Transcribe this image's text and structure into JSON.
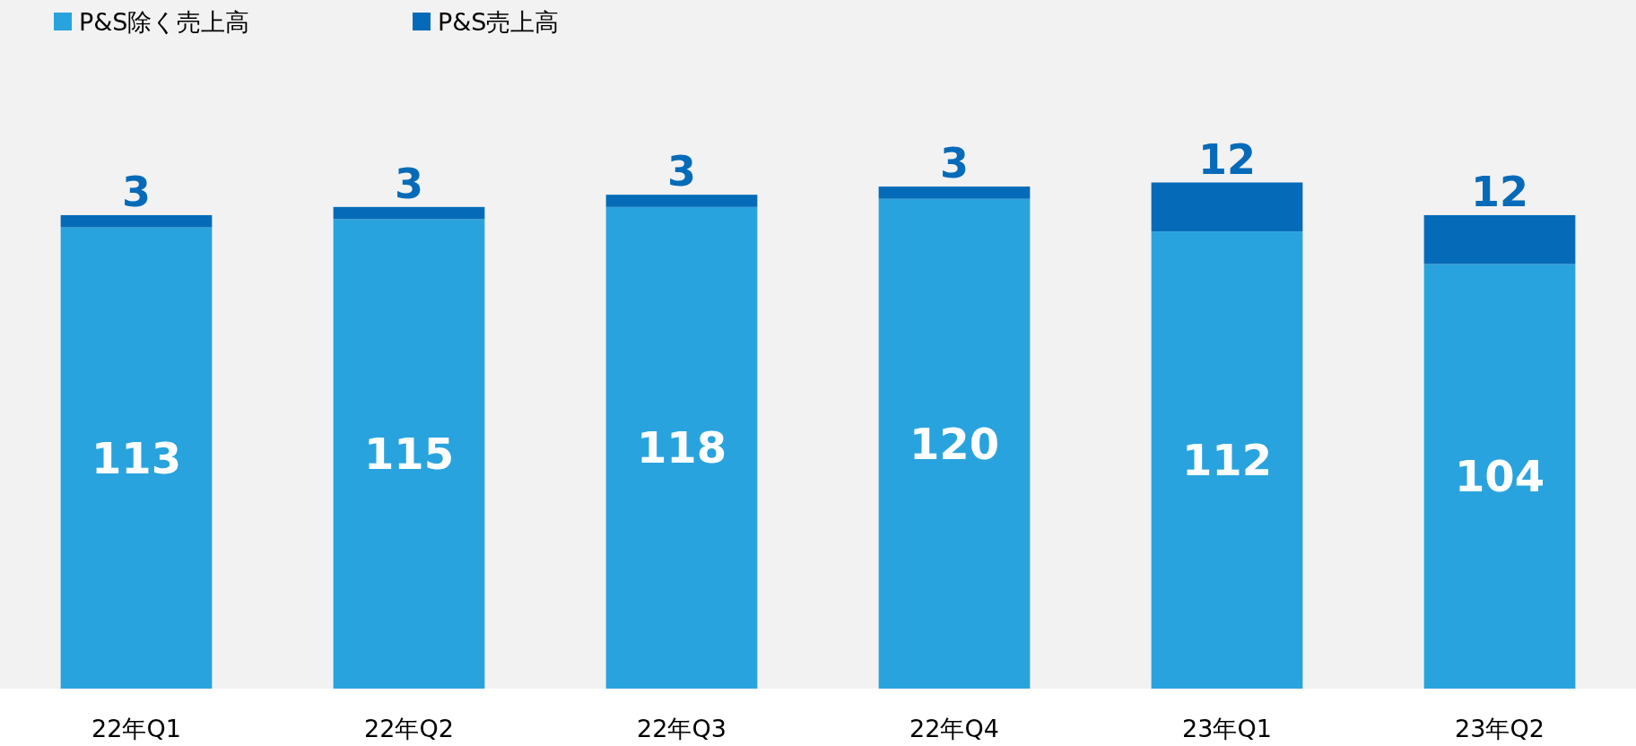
{
  "chart_data": {
    "type": "bar",
    "stacked": true,
    "categories": [
      "22年Q1",
      "22年Q2",
      "22年Q3",
      "22年Q4",
      "23年Q1",
      "23年Q2"
    ],
    "series": [
      {
        "name": "P&S除く売上高",
        "color": "#29a3de",
        "values": [
          113,
          115,
          118,
          120,
          112,
          104
        ]
      },
      {
        "name": "P&S売上高",
        "color": "#056bb8",
        "values": [
          3,
          3,
          3,
          3,
          12,
          12
        ]
      }
    ],
    "data_labels": true,
    "legend": "top left"
  }
}
